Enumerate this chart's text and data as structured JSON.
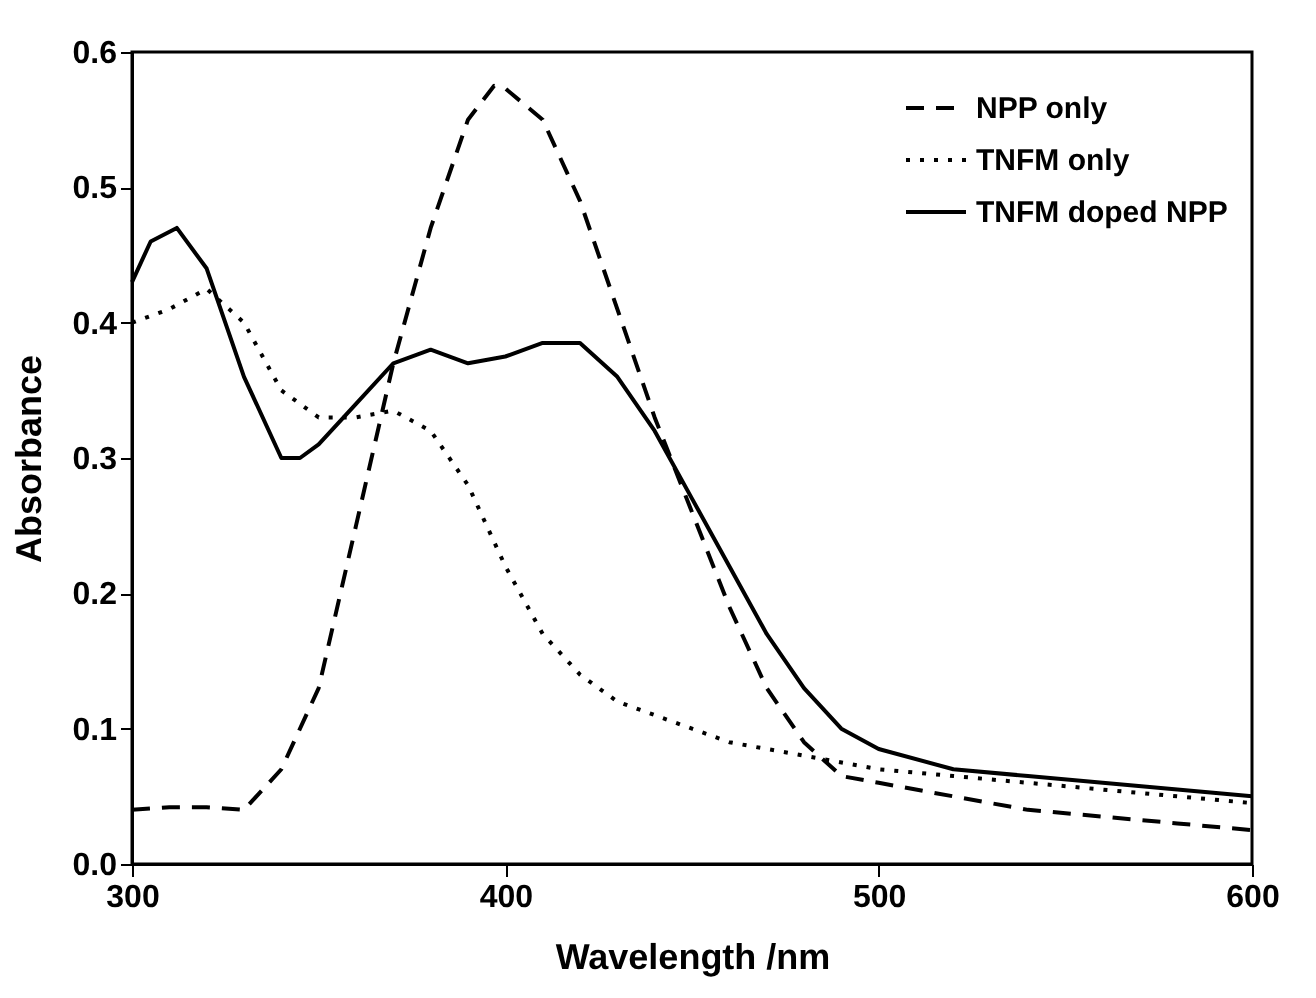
{
  "chart_data": {
    "type": "line",
    "xlabel": "Wavelength /nm",
    "ylabel": "Absorbance",
    "xlim": [
      300,
      600
    ],
    "xticks": [
      300,
      400,
      500,
      600
    ],
    "ylim": [
      0,
      0.6
    ],
    "yticks": [
      {
        "value": 0,
        "label": "0.0"
      },
      {
        "value": 0.1,
        "label": "0.1"
      },
      {
        "value": 0.2,
        "label": "0.2"
      },
      {
        "value": 0.3,
        "label": "0.3"
      },
      {
        "value": 0.4,
        "label": "0.4"
      },
      {
        "value": 0.5,
        "label": "0.5"
      },
      {
        "value": 0.6,
        "label": "0.6"
      }
    ],
    "legend": "top right",
    "grid": false,
    "marker": "none",
    "series": [
      {
        "name": "NPP only",
        "color": "#000000",
        "line_style": "dashed",
        "x": [
          300,
          310,
          320,
          330,
          340,
          350,
          360,
          370,
          380,
          390,
          397,
          400,
          410,
          420,
          430,
          440,
          450,
          460,
          470,
          480,
          490,
          500,
          520,
          540,
          560,
          580,
          600
        ],
        "values": [
          0.04,
          0.042,
          0.042,
          0.04,
          0.07,
          0.13,
          0.25,
          0.37,
          0.47,
          0.55,
          0.575,
          0.573,
          0.55,
          0.49,
          0.41,
          0.33,
          0.26,
          0.19,
          0.13,
          0.09,
          0.065,
          0.06,
          0.05,
          0.04,
          0.035,
          0.03,
          0.025
        ]
      },
      {
        "name": "TNFM only",
        "color": "#000000",
        "line_style": "dotted",
        "x": [
          300,
          310,
          320,
          330,
          340,
          350,
          360,
          370,
          380,
          390,
          400,
          410,
          420,
          430,
          440,
          450,
          460,
          480,
          500,
          520,
          540,
          560,
          580,
          600
        ],
        "values": [
          0.4,
          0.41,
          0.425,
          0.4,
          0.35,
          0.33,
          0.33,
          0.335,
          0.32,
          0.28,
          0.22,
          0.17,
          0.14,
          0.12,
          0.11,
          0.1,
          0.09,
          0.08,
          0.07,
          0.065,
          0.06,
          0.055,
          0.05,
          0.045
        ]
      },
      {
        "name": "TNFM doped NPP",
        "color": "#000000",
        "line_style": "solid",
        "x": [
          300,
          305,
          312,
          320,
          330,
          340,
          345,
          350,
          360,
          370,
          380,
          390,
          400,
          410,
          420,
          430,
          440,
          450,
          460,
          470,
          480,
          490,
          500,
          520,
          540,
          560,
          580,
          600
        ],
        "values": [
          0.43,
          0.46,
          0.47,
          0.44,
          0.36,
          0.3,
          0.3,
          0.31,
          0.34,
          0.37,
          0.38,
          0.37,
          0.375,
          0.385,
          0.385,
          0.36,
          0.32,
          0.27,
          0.22,
          0.17,
          0.13,
          0.1,
          0.085,
          0.07,
          0.065,
          0.06,
          0.055,
          0.05
        ]
      }
    ]
  }
}
